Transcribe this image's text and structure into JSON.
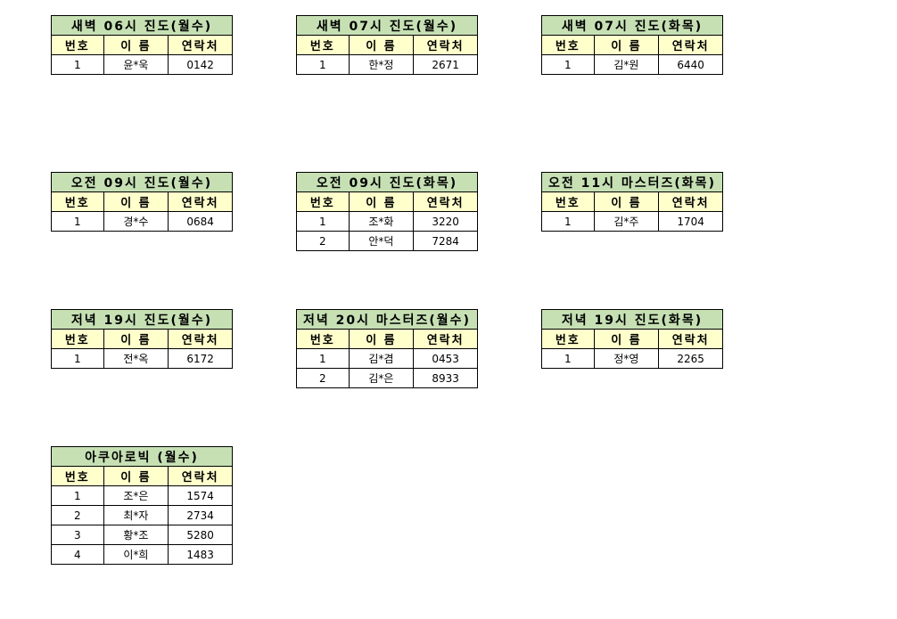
{
  "headers": {
    "no": "번호",
    "name": "이 름",
    "contact": "연락처"
  },
  "tables": [
    {
      "title": "새벽 06시 진도(월수)",
      "rows": [
        [
          "1",
          "윤*욱",
          "0142"
        ]
      ]
    },
    {
      "title": "새벽 07시 진도(월수)",
      "rows": [
        [
          "1",
          "한*정",
          "2671"
        ]
      ]
    },
    {
      "title": "새벽 07시 진도(화목)",
      "rows": [
        [
          "1",
          "김*원",
          "6440"
        ]
      ]
    },
    {
      "title": "오전 09시 진도(월수)",
      "rows": [
        [
          "1",
          "경*수",
          "0684"
        ]
      ]
    },
    {
      "title": "오전 09시 진도(화목)",
      "rows": [
        [
          "1",
          "조*화",
          "3220"
        ],
        [
          "2",
          "안*덕",
          "7284"
        ]
      ]
    },
    {
      "title": "오전 11시 마스터즈(화목)",
      "rows": [
        [
          "1",
          "김*주",
          "1704"
        ]
      ]
    },
    {
      "title": "저녁 19시 진도(월수)",
      "rows": [
        [
          "1",
          "전*옥",
          "6172"
        ]
      ]
    },
    {
      "title": "저녁 20시 마스터즈(월수)",
      "rows": [
        [
          "1",
          "김*겸",
          "0453"
        ],
        [
          "2",
          "김*은",
          "8933"
        ]
      ]
    },
    {
      "title": "저녁 19시 진도(화목)",
      "rows": [
        [
          "1",
          "정*영",
          "2265"
        ]
      ]
    },
    {
      "title": "아쿠아로빅 (월수)",
      "rows": [
        [
          "1",
          "조*은",
          "1574"
        ],
        [
          "2",
          "최*자",
          "2734"
        ],
        [
          "3",
          "황*조",
          "5280"
        ],
        [
          "4",
          "이*희",
          "1483"
        ]
      ]
    }
  ]
}
